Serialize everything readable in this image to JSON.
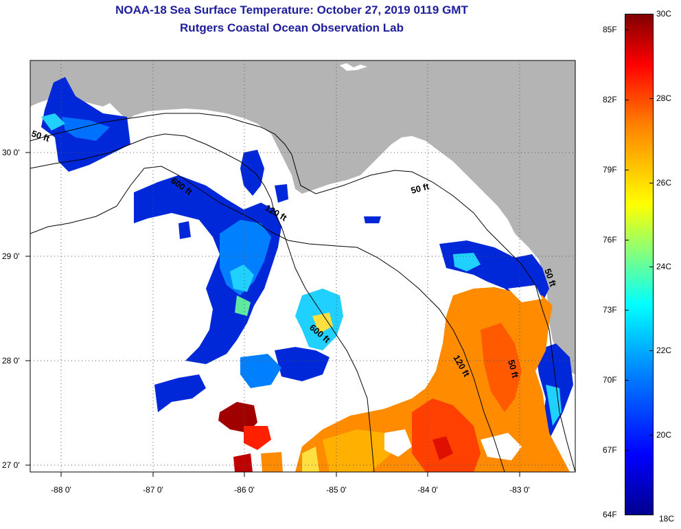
{
  "title": "NOAA-18 Sea Surface Temperature:  October 27, 2019 0119 GMT",
  "subtitle": "Rutgers Coastal Ocean Observation Lab",
  "x_axis_labels": [
    "-88 0'",
    "-87 0'",
    "-86 0'",
    "-85 0'",
    "-84 0'",
    "-83 0'"
  ],
  "y_axis_labels": [
    "30 0'",
    "29 0'",
    "28 0'",
    "27 0'"
  ],
  "contour_labels": [
    "50 ft",
    "600 ft",
    "120 ft",
    "600 ft",
    "50 ft",
    "120 ft",
    "50 ft",
    "50 ft"
  ],
  "colorbar": {
    "fahrenheit": [
      "85F",
      "82F",
      "79F",
      "76F",
      "73F",
      "70F",
      "67F",
      "64F"
    ],
    "celsius": [
      "30C",
      "28C",
      "26C",
      "24C",
      "22C",
      "20C",
      "18C"
    ]
  },
  "colors": {
    "land": "#b4b4b4",
    "no_data": "#ffffff",
    "title": "#1c1c9c"
  }
}
